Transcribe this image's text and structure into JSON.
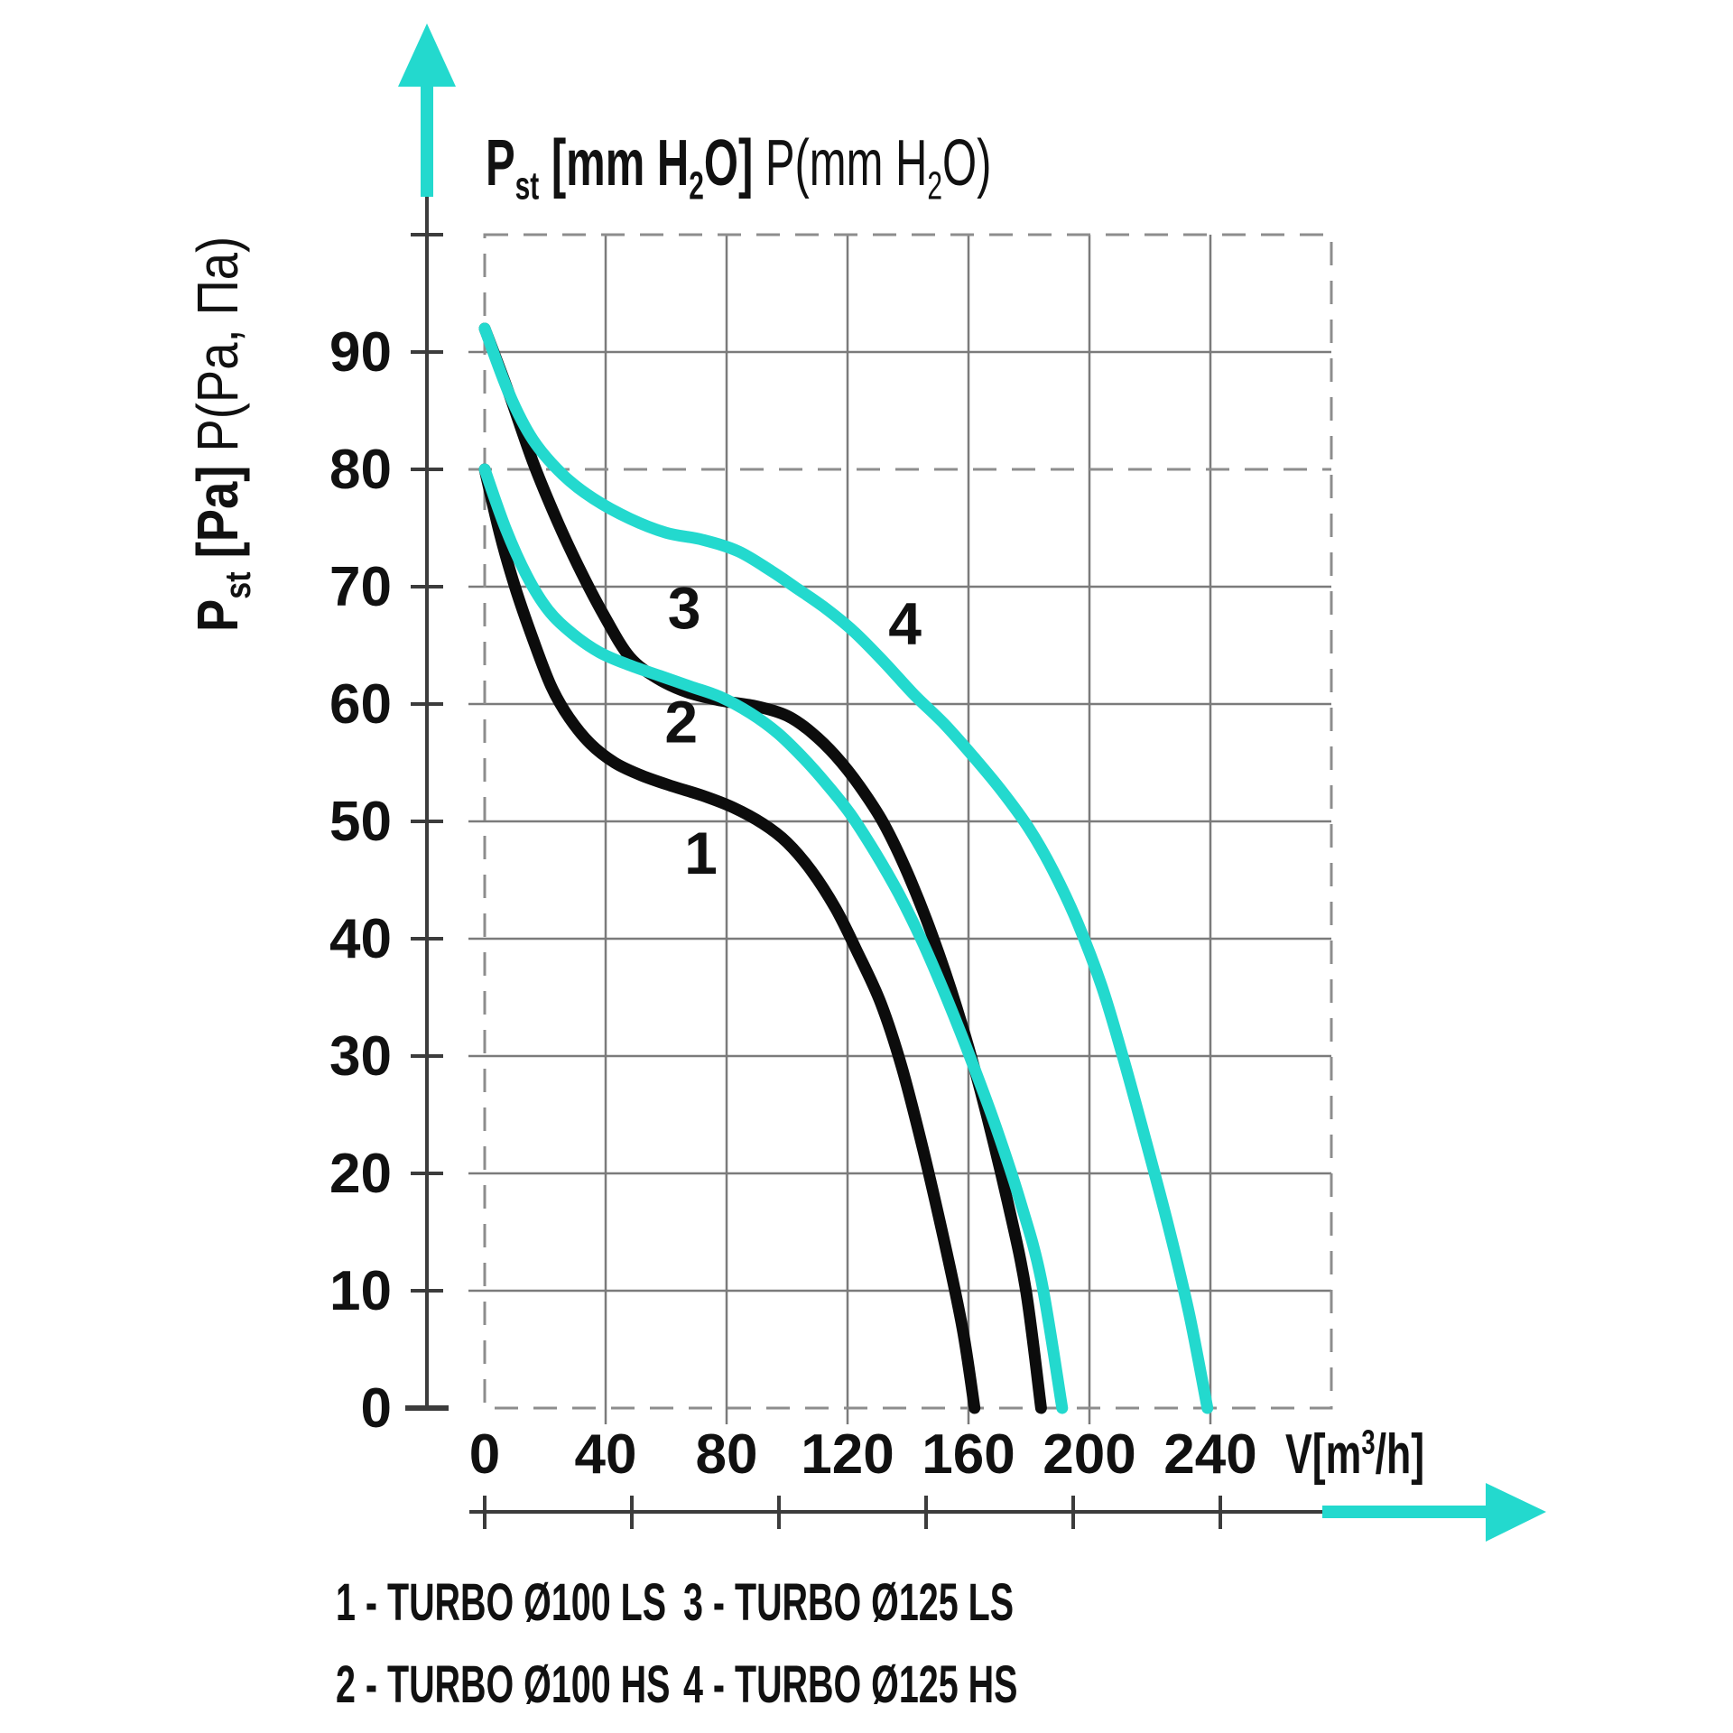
{
  "colors": {
    "accent": "#23d9ce",
    "curve_black": "#0c0c0c",
    "grid": "#7b7b7b",
    "dashed": "#8d8d8d",
    "axis": "#3c3c3c",
    "text": "#111111"
  },
  "title": {
    "p": "P",
    "sub_st": "st",
    "b1": " [mm H",
    "s2": "2",
    "b2": "O] ",
    "r1": "P(mm H",
    "s3": "2",
    "r2": "O)"
  },
  "y_axis_title": {
    "p": "P",
    "sub_st": "st",
    "b": " [Pa] ",
    "r": "P(Pa, Пa)"
  },
  "x_axis_unit": {
    "a": "V[m",
    "sup": "3",
    "b": "/h]"
  },
  "legend": {
    "items": [
      "1 - TURBO Ø100 LS",
      "2 - TURBO Ø100 HS",
      "3 - TURBO Ø125 LS",
      "4 - TURBO Ø125 HS"
    ]
  },
  "chart_data": {
    "type": "line",
    "title": "P st [mm H₂O] P(mm H₂O)",
    "xlabel": "V[m³/h]",
    "ylabel": "P st [Pa] P(Pa, Пa)",
    "x_axis": {
      "tick_labels": [
        "0",
        "40",
        "80",
        "120",
        "160",
        "200",
        "240"
      ],
      "tick_values": [
        0,
        40,
        80,
        120,
        160,
        200,
        240
      ],
      "range": [
        0,
        280
      ],
      "grid": "solid"
    },
    "y_axis": {
      "tick_labels": [
        "0",
        "10",
        "20",
        "30",
        "40",
        "50",
        "60",
        "70",
        "80",
        "90"
      ],
      "tick_values": [
        0,
        10,
        20,
        30,
        40,
        50,
        60,
        70,
        80,
        90
      ],
      "range": [
        0,
        100
      ],
      "dashed_level": 80
    },
    "series": [
      {
        "label": "1",
        "name": "TURBO Ø100 LS",
        "color": "black",
        "points": [
          [
            0,
            80
          ],
          [
            5,
            74.5
          ],
          [
            10,
            70
          ],
          [
            16,
            65.5
          ],
          [
            22,
            61.5
          ],
          [
            28,
            58.8
          ],
          [
            35,
            56.6
          ],
          [
            43,
            55
          ],
          [
            52,
            53.9
          ],
          [
            62,
            53
          ],
          [
            72,
            52.2
          ],
          [
            82,
            51.2
          ],
          [
            92,
            49.8
          ],
          [
            100,
            48.2
          ],
          [
            108,
            45.8
          ],
          [
            116,
            42.6
          ],
          [
            123,
            39
          ],
          [
            131,
            34.5
          ],
          [
            138,
            29
          ],
          [
            145,
            22
          ],
          [
            152,
            14.2
          ],
          [
            158,
            6.8
          ],
          [
            162,
            0
          ]
        ]
      },
      {
        "label": "2",
        "name": "TURBO Ø100 HS",
        "color": "black",
        "points": [
          [
            0,
            92
          ],
          [
            8,
            86.5
          ],
          [
            16,
            80.6
          ],
          [
            24,
            75.6
          ],
          [
            32,
            71.2
          ],
          [
            40,
            67.3
          ],
          [
            48,
            64
          ],
          [
            57,
            62.2
          ],
          [
            67,
            61
          ],
          [
            78,
            60.3
          ],
          [
            90,
            59.8
          ],
          [
            100,
            59
          ],
          [
            108,
            57.6
          ],
          [
            116,
            55.6
          ],
          [
            124,
            53
          ],
          [
            132,
            49.8
          ],
          [
            140,
            45.5
          ],
          [
            148,
            40.3
          ],
          [
            156,
            34.2
          ],
          [
            164,
            27
          ],
          [
            173,
            17.5
          ],
          [
            179,
            10
          ],
          [
            184,
            0
          ]
        ]
      },
      {
        "label": "3",
        "name": "TURBO Ø125 LS",
        "color": "accent",
        "points": [
          [
            0,
            80
          ],
          [
            7,
            74.9
          ],
          [
            14,
            70.9
          ],
          [
            21,
            68
          ],
          [
            29,
            66
          ],
          [
            38,
            64.4
          ],
          [
            48,
            63.3
          ],
          [
            58,
            62.4
          ],
          [
            68,
            61.5
          ],
          [
            78,
            60.6
          ],
          [
            88,
            59.2
          ],
          [
            97,
            57.5
          ],
          [
            105,
            55.5
          ],
          [
            113,
            53.2
          ],
          [
            121,
            50.6
          ],
          [
            129,
            47.4
          ],
          [
            137,
            43.8
          ],
          [
            145,
            39.6
          ],
          [
            153,
            34.8
          ],
          [
            161,
            29.6
          ],
          [
            169,
            24
          ],
          [
            177,
            17.7
          ],
          [
            184,
            11
          ],
          [
            191,
            0
          ]
        ]
      },
      {
        "label": "4",
        "name": "TURBO Ø125 HS",
        "color": "accent",
        "points": [
          [
            0,
            92
          ],
          [
            8,
            86.5
          ],
          [
            16,
            82.5
          ],
          [
            26,
            79.5
          ],
          [
            36,
            77.5
          ],
          [
            48,
            75.8
          ],
          [
            60,
            74.6
          ],
          [
            72,
            74
          ],
          [
            84,
            73
          ],
          [
            95,
            71.3
          ],
          [
            103,
            69.9
          ],
          [
            112,
            68.3
          ],
          [
            122,
            66.2
          ],
          [
            132,
            63.6
          ],
          [
            142,
            60.8
          ],
          [
            152,
            58.3
          ],
          [
            162,
            55.4
          ],
          [
            171,
            52.6
          ],
          [
            180,
            49.4
          ],
          [
            188,
            45.8
          ],
          [
            196,
            41.4
          ],
          [
            204,
            36
          ],
          [
            211,
            30
          ],
          [
            218,
            23.4
          ],
          [
            226,
            15.6
          ],
          [
            233,
            8
          ],
          [
            239,
            0
          ]
        ]
      }
    ],
    "curve_labels": [
      {
        "text": "1",
        "v": 71.5,
        "p": 47.3
      },
      {
        "text": "2",
        "v": 65,
        "p": 58.5
      },
      {
        "text": "3",
        "v": 66,
        "p": 68.2
      },
      {
        "text": "4",
        "v": 139,
        "p": 66.9
      }
    ]
  }
}
